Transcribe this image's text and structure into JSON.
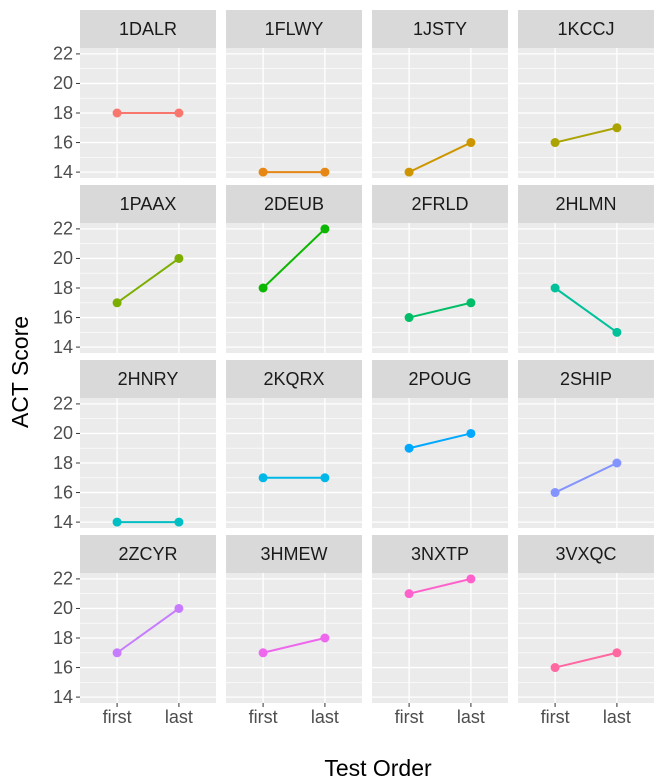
{
  "chart_data": {
    "type": "line",
    "xlabel": "Test Order",
    "ylabel": "ACT Score",
    "categories": [
      "first",
      "last"
    ],
    "ylim": [
      13.6,
      22.4
    ],
    "yticks": [
      14,
      16,
      18,
      20,
      22
    ],
    "grid": true,
    "columns": 4,
    "series": [
      {
        "name": "1DALR",
        "color": "#F8766D",
        "values": [
          18,
          18
        ]
      },
      {
        "name": "1FLWY",
        "color": "#E68613",
        "values": [
          14,
          14
        ]
      },
      {
        "name": "1JSTY",
        "color": "#CD9600",
        "values": [
          14,
          16
        ]
      },
      {
        "name": "1KCCJ",
        "color": "#ABA300",
        "values": [
          16,
          17
        ]
      },
      {
        "name": "1PAAX",
        "color": "#7CAE00",
        "values": [
          17,
          20
        ]
      },
      {
        "name": "2DEUB",
        "color": "#0CB702",
        "values": [
          18,
          22
        ]
      },
      {
        "name": "2FRLD",
        "color": "#00BE67",
        "values": [
          16,
          17
        ]
      },
      {
        "name": "2HLMN",
        "color": "#00C19A",
        "values": [
          18,
          15
        ]
      },
      {
        "name": "2HNRY",
        "color": "#00BFC4",
        "values": [
          14,
          14
        ]
      },
      {
        "name": "2KQRX",
        "color": "#00B8E7",
        "values": [
          17,
          17
        ]
      },
      {
        "name": "2POUG",
        "color": "#00A9FF",
        "values": [
          19,
          20
        ]
      },
      {
        "name": "2SHIP",
        "color": "#8494FF",
        "values": [
          16,
          18
        ]
      },
      {
        "name": "2ZCYR",
        "color": "#C77CFF",
        "values": [
          17,
          20
        ]
      },
      {
        "name": "3HMEW",
        "color": "#ED68ED",
        "values": [
          17,
          18
        ]
      },
      {
        "name": "3NXTP",
        "color": "#FF61CC",
        "values": [
          21,
          22
        ]
      },
      {
        "name": "3VXQC",
        "color": "#FF68A1",
        "values": [
          16,
          17
        ]
      }
    ]
  }
}
